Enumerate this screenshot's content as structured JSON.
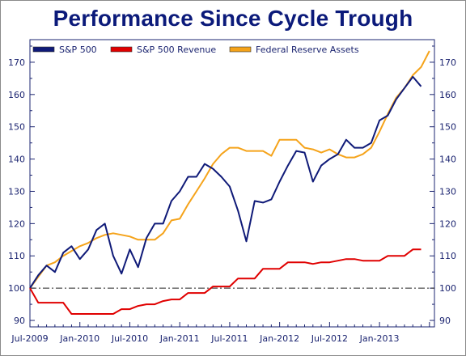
{
  "chart_data": {
    "type": "line",
    "title": "Performance Since Cycle Trough",
    "xlabel": "",
    "ylabel": "",
    "ylim": [
      88,
      177
    ],
    "yticks": [
      90,
      100,
      110,
      120,
      130,
      140,
      150,
      160,
      170
    ],
    "ytick_labels": [
      "90",
      "100",
      "110",
      "120",
      "130",
      "140",
      "150",
      "160",
      "170"
    ],
    "x_month_range": [
      0,
      46
    ],
    "xticks": [
      {
        "month": 0,
        "label": "Jul-2009"
      },
      {
        "month": 6,
        "label": "Jan-2010"
      },
      {
        "month": 12,
        "label": "Jul-2010"
      },
      {
        "month": 18,
        "label": "Jan-2011"
      },
      {
        "month": 24,
        "label": "Jul-2011"
      },
      {
        "month": 30,
        "label": "Jan-2012"
      },
      {
        "month": 36,
        "label": "Jul-2012"
      },
      {
        "month": 42,
        "label": "Jan-2013"
      }
    ],
    "reference_line": {
      "y": 100,
      "style": "dash-dot"
    },
    "grid": false,
    "legend_position": "top",
    "series": [
      {
        "name": "S&P 500",
        "color": "#0f1a78",
        "points": [
          [
            0,
            100
          ],
          [
            1,
            104
          ],
          [
            2,
            107
          ],
          [
            3,
            105
          ],
          [
            4,
            111
          ],
          [
            5,
            113
          ],
          [
            6,
            109
          ],
          [
            7,
            112
          ],
          [
            8,
            118
          ],
          [
            9,
            120
          ],
          [
            10,
            110
          ],
          [
            11,
            104.5
          ],
          [
            12,
            112
          ],
          [
            13,
            106.5
          ],
          [
            14,
            115.5
          ],
          [
            15,
            120
          ],
          [
            16,
            120
          ],
          [
            17,
            127
          ],
          [
            18,
            130
          ],
          [
            19,
            134.5
          ],
          [
            20,
            134.5
          ],
          [
            21,
            138.5
          ],
          [
            22,
            137
          ],
          [
            23,
            134.5
          ],
          [
            24,
            131.5
          ],
          [
            25,
            124
          ],
          [
            26,
            114.5
          ],
          [
            27,
            127
          ],
          [
            28,
            126.5
          ],
          [
            29,
            127.5
          ],
          [
            30,
            133
          ],
          [
            31,
            138
          ],
          [
            32,
            142.5
          ],
          [
            33,
            142
          ],
          [
            34,
            133
          ],
          [
            35,
            138
          ],
          [
            36,
            140
          ],
          [
            37,
            141.5
          ],
          [
            38,
            146
          ],
          [
            39,
            143.5
          ],
          [
            40,
            143.5
          ],
          [
            41,
            145
          ],
          [
            42,
            152
          ],
          [
            43,
            153.5
          ],
          [
            44,
            158.5
          ],
          [
            45,
            162
          ],
          [
            46,
            165.5
          ],
          [
            47,
            162.5
          ]
        ]
      },
      {
        "name": "S&P 500 Revenue",
        "color": "#e00000",
        "points": [
          [
            0,
            100
          ],
          [
            1,
            95.5
          ],
          [
            2,
            95.5
          ],
          [
            3,
            95.5
          ],
          [
            4,
            95.5
          ],
          [
            5,
            92
          ],
          [
            6,
            92
          ],
          [
            7,
            92
          ],
          [
            8,
            92
          ],
          [
            9,
            92
          ],
          [
            10,
            92
          ],
          [
            11,
            93.5
          ],
          [
            12,
            93.5
          ],
          [
            13,
            94.5
          ],
          [
            14,
            95
          ],
          [
            15,
            95
          ],
          [
            16,
            96
          ],
          [
            17,
            96.5
          ],
          [
            18,
            96.5
          ],
          [
            19,
            98.5
          ],
          [
            20,
            98.5
          ],
          [
            21,
            98.5
          ],
          [
            22,
            100.5
          ],
          [
            23,
            100.5
          ],
          [
            24,
            100.5
          ],
          [
            25,
            103
          ],
          [
            26,
            103
          ],
          [
            27,
            103
          ],
          [
            28,
            106
          ],
          [
            29,
            106
          ],
          [
            30,
            106
          ],
          [
            31,
            108
          ],
          [
            32,
            108
          ],
          [
            33,
            108
          ],
          [
            34,
            107.5
          ],
          [
            35,
            108
          ],
          [
            36,
            108
          ],
          [
            37,
            108.5
          ],
          [
            38,
            109
          ],
          [
            39,
            109
          ],
          [
            40,
            108.5
          ],
          [
            41,
            108.5
          ],
          [
            42,
            108.5
          ],
          [
            43,
            110
          ],
          [
            44,
            110
          ],
          [
            45,
            110
          ],
          [
            46,
            112
          ],
          [
            47,
            112
          ]
        ]
      },
      {
        "name": "Federal Reserve Assets",
        "color": "#f5a31a",
        "points": [
          [
            0,
            100
          ],
          [
            1,
            103.5
          ],
          [
            2,
            107
          ],
          [
            3,
            108
          ],
          [
            4,
            110
          ],
          [
            5,
            111.5
          ],
          [
            6,
            113
          ],
          [
            7,
            114
          ],
          [
            8,
            115.5
          ],
          [
            9,
            116.5
          ],
          [
            10,
            117
          ],
          [
            11,
            116.5
          ],
          [
            12,
            116
          ],
          [
            13,
            115
          ],
          [
            14,
            115
          ],
          [
            15,
            115
          ],
          [
            16,
            117
          ],
          [
            17,
            121
          ],
          [
            18,
            121.5
          ],
          [
            19,
            126
          ],
          [
            20,
            130
          ],
          [
            21,
            134
          ],
          [
            22,
            138.5
          ],
          [
            23,
            141.5
          ],
          [
            24,
            143.5
          ],
          [
            25,
            143.5
          ],
          [
            26,
            142.5
          ],
          [
            27,
            142.5
          ],
          [
            28,
            142.5
          ],
          [
            29,
            141
          ],
          [
            30,
            146
          ],
          [
            31,
            146
          ],
          [
            32,
            146
          ],
          [
            33,
            143.5
          ],
          [
            34,
            143
          ],
          [
            35,
            142
          ],
          [
            36,
            143
          ],
          [
            37,
            141.5
          ],
          [
            38,
            140.5
          ],
          [
            39,
            140.5
          ],
          [
            40,
            141.5
          ],
          [
            41,
            143.5
          ],
          [
            42,
            148.5
          ],
          [
            43,
            154
          ],
          [
            44,
            159
          ],
          [
            45,
            162
          ],
          [
            46,
            166
          ],
          [
            47,
            168.5
          ],
          [
            48,
            173.5
          ]
        ]
      }
    ]
  }
}
